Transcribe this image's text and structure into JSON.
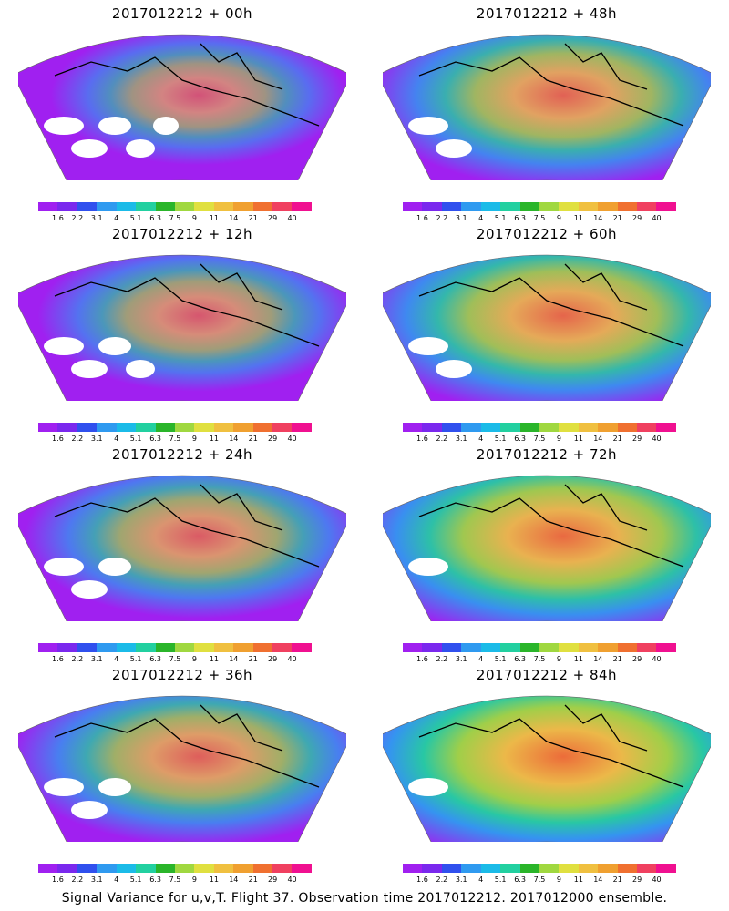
{
  "panels": [
    {
      "title": "2017012212 + 00h",
      "spread": 0.25
    },
    {
      "title": "2017012212 + 48h",
      "spread": 0.62
    },
    {
      "title": "2017012212 + 12h",
      "spread": 0.35
    },
    {
      "title": "2017012212 + 60h",
      "spread": 0.72
    },
    {
      "title": "2017012212 + 24h",
      "spread": 0.45
    },
    {
      "title": "2017012212 + 72h",
      "spread": 0.82
    },
    {
      "title": "2017012212 + 36h",
      "spread": 0.55
    },
    {
      "title": "2017012212 + 84h",
      "spread": 0.9
    }
  ],
  "colorbar": {
    "colors": [
      "#a020f0",
      "#7a28ee",
      "#3050ee",
      "#2f9af0",
      "#1bbbe8",
      "#22d0a0",
      "#2ab52a",
      "#a0d840",
      "#e0e040",
      "#f0c040",
      "#f0a030",
      "#f07030",
      "#f04060",
      "#f01090"
    ],
    "tick_labels": [
      "1.6",
      "2.2",
      "3.1",
      "4",
      "5.1",
      "6.3",
      "7.5",
      "9",
      "11",
      "14",
      "21",
      "29",
      "40"
    ]
  },
  "caption": "Signal Variance for u,v,T. Flight 37. Observation time 2017012212. 2017012000 ensemble."
}
